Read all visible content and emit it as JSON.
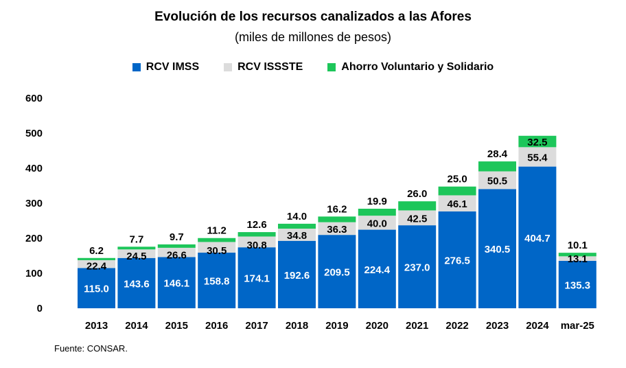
{
  "chart_data": {
    "type": "bar",
    "stacked": true,
    "title": "Evolución de los recursos canalizados a las Afores",
    "subtitle": "(miles de millones de pesos)",
    "categories": [
      "2013",
      "2014",
      "2015",
      "2016",
      "2017",
      "2018",
      "2019",
      "2020",
      "2021",
      "2022",
      "2023",
      "2024",
      "mar-25"
    ],
    "series": [
      {
        "name": "RCV IMSS",
        "color": "#0066C7",
        "label_color": "#ffffff",
        "values": [
          115.0,
          143.6,
          146.1,
          158.8,
          174.1,
          192.6,
          209.5,
          224.4,
          237.0,
          276.5,
          340.5,
          404.7,
          135.3
        ],
        "labels": [
          "115.0",
          "143.6",
          "146.1",
          "158.8",
          "174.1",
          "192.6",
          "209.5",
          "224.4",
          "237.0",
          "276.5",
          "340.5",
          "404.7",
          "135.3"
        ]
      },
      {
        "name": "RCV ISSSTE",
        "color": "#DCDCDC",
        "label_color": "#000000",
        "values": [
          22.4,
          24.5,
          26.6,
          30.5,
          30.8,
          34.8,
          36.3,
          40.0,
          42.5,
          46.1,
          50.5,
          55.4,
          13.1
        ],
        "labels": [
          "22.4",
          "24.5",
          "26.6",
          "30.5",
          "30.8",
          "34.8",
          "36.3",
          "40.0",
          "42.5",
          "46.1",
          "50.5",
          "55.4",
          "13.1"
        ]
      },
      {
        "name": "Ahorro Voluntario y Solidario",
        "color": "#1DC65A",
        "label_color": "#000000",
        "values": [
          6.2,
          7.7,
          9.7,
          11.2,
          12.6,
          14.0,
          16.2,
          19.9,
          26.0,
          25.0,
          28.4,
          32.5,
          10.1
        ],
        "labels": [
          "6.2",
          "7.7",
          "9.7",
          "11.2",
          "12.6",
          "14.0",
          "16.2",
          "19.9",
          "26.0",
          "25.0",
          "28.4",
          "32.5",
          "10.1"
        ]
      }
    ],
    "yticks": [
      "0",
      "100",
      "200",
      "300",
      "400",
      "500",
      "600"
    ],
    "ylim": [
      0,
      600
    ],
    "grid": false,
    "legend": "top-center"
  },
  "source": "Fuente: CONSAR."
}
